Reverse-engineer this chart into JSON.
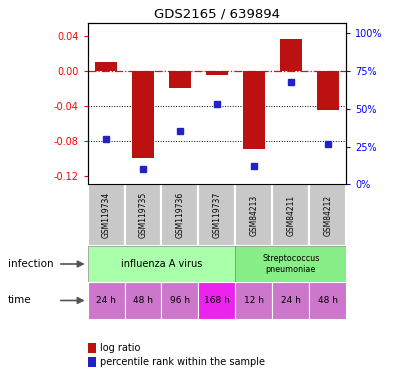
{
  "title": "GDS2165 / 639894",
  "samples": [
    "GSM119734",
    "GSM119735",
    "GSM119736",
    "GSM119737",
    "GSM84213",
    "GSM84211",
    "GSM84212"
  ],
  "log_ratio": [
    0.01,
    -0.1,
    -0.02,
    -0.005,
    -0.09,
    0.037,
    -0.045
  ],
  "percentile": [
    30,
    10,
    35,
    53,
    12,
    68,
    27
  ],
  "bar_color": "#bb1111",
  "dot_color": "#2222cc",
  "ylim_left": [
    -0.13,
    0.055
  ],
  "yticks_left": [
    0.04,
    0.0,
    -0.04,
    -0.08,
    -0.12
  ],
  "ylim_right": [
    -11.25,
    118.75
  ],
  "yticks_right": [
    0,
    25,
    50,
    75,
    100
  ],
  "yticklabels_right": [
    "0%",
    "25%",
    "50%",
    "75%",
    "100%"
  ],
  "time_labels": [
    "24 h",
    "48 h",
    "96 h",
    "168 h",
    "12 h",
    "24 h",
    "48 h"
  ],
  "time_colors": [
    "#cc77cc",
    "#cc77cc",
    "#cc77cc",
    "#ee22ee",
    "#cc77cc",
    "#cc77cc",
    "#cc77cc"
  ],
  "infect_color_1": "#aaffaa",
  "infect_color_2": "#88ee88",
  "legend_log_ratio": "log ratio",
  "legend_percentile": "percentile rank within the sample"
}
